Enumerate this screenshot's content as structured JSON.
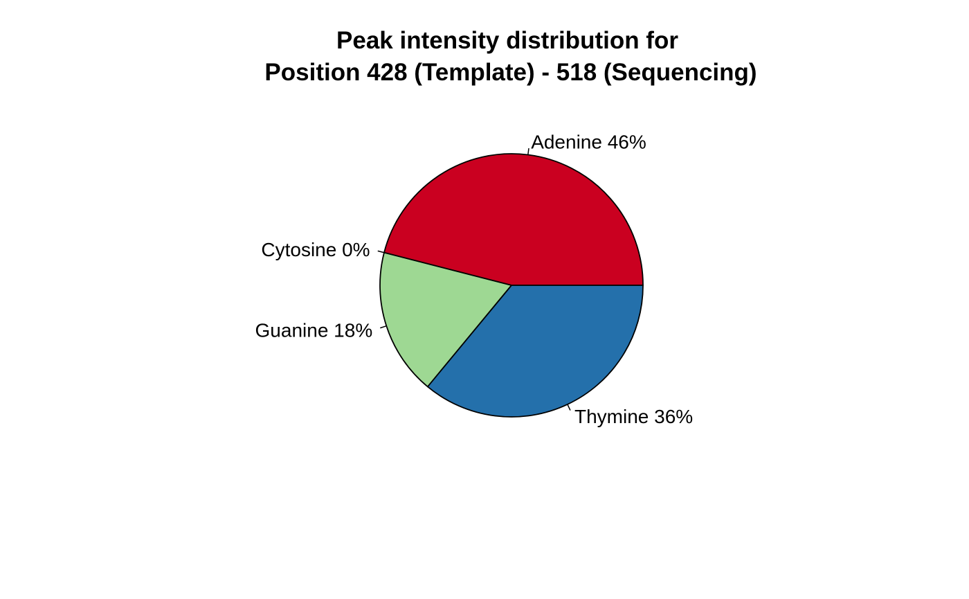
{
  "chart_data": {
    "type": "pie",
    "title_lines": [
      "Peak intensity distribution for",
      "Position 428 (Template) - 518 (Sequencing)"
    ],
    "slices": [
      {
        "name": "Adenine",
        "value": 46,
        "label": "Adenine 46%",
        "color": "#CA0020"
      },
      {
        "name": "Cytosine",
        "value": 0,
        "label": "Cytosine 0%",
        "color": "#F4A582"
      },
      {
        "name": "Guanine",
        "value": 18,
        "label": "Guanine 18%",
        "color": "#9ED893"
      },
      {
        "name": "Thymine",
        "value": 36,
        "label": "Thymine 36%",
        "color": "#2470AB"
      }
    ],
    "start_angle_deg": 0,
    "direction": "counterclockwise",
    "border_color": "#000000"
  }
}
